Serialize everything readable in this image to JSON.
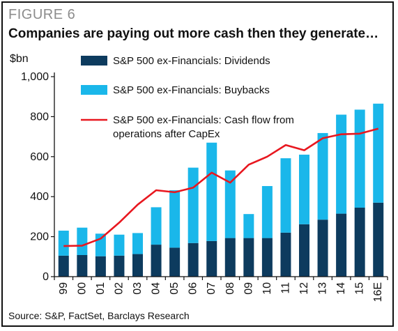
{
  "figure": {
    "label": "FIGURE 6",
    "title": "Companies are paying out more cash then they generate…",
    "source": "Source: S&P, FactSet, Barclays Research"
  },
  "colors": {
    "dividends": "#0d3b5e",
    "buybacks": "#1ab7ea",
    "cash_flow": "#e8171f"
  },
  "chart_data": {
    "type": "bar",
    "stacked": true,
    "ylabel": "$bn",
    "ylim": [
      0,
      1000
    ],
    "yticks": [
      "0",
      "200",
      "400",
      "600",
      "800",
      "1,000"
    ],
    "grid": false,
    "legend_position": "top-left",
    "categories": [
      "99",
      "00",
      "01",
      "02",
      "03",
      "04",
      "05",
      "06",
      "07",
      "08",
      "09",
      "10",
      "11",
      "12",
      "13",
      "14",
      "15",
      "16E"
    ],
    "series": [
      {
        "name": "S&P 500 ex-Financials: Dividends",
        "type": "bar",
        "values": [
          105,
          108,
          102,
          105,
          113,
          160,
          145,
          168,
          178,
          193,
          193,
          193,
          220,
          262,
          285,
          315,
          345,
          370
        ]
      },
      {
        "name": "S&P 500 ex-Financials: Buybacks",
        "type": "bar",
        "values": [
          125,
          137,
          113,
          105,
          105,
          187,
          287,
          377,
          492,
          338,
          120,
          260,
          372,
          348,
          433,
          495,
          490,
          495
        ]
      },
      {
        "name": "S&P 500 ex-Financials: Cash flow from operations after CapEx",
        "name_lines": [
          "S&P 500 ex-Financials: Cash flow from",
          "operations after CapEx"
        ],
        "type": "line",
        "values": [
          153,
          155,
          190,
          270,
          360,
          432,
          422,
          445,
          520,
          470,
          560,
          600,
          658,
          632,
          692,
          712,
          715,
          740
        ]
      }
    ]
  }
}
